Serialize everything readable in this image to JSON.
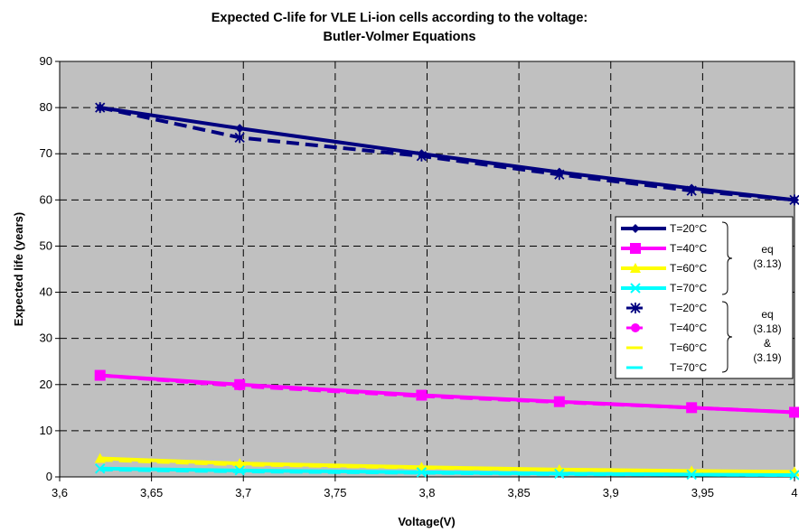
{
  "chart_data": {
    "type": "line",
    "title_lines": [
      "Expected C-life for VLE Li-ion cells according to the voltage:",
      "Butler-Volmer Equations"
    ],
    "xlabel": "Voltage(V)",
    "ylabel": "Expected life (years)",
    "xlim": [
      3.6,
      4.0
    ],
    "ylim": [
      0,
      90
    ],
    "x_ticks": [
      "3,6",
      "3,65",
      "3,7",
      "3,75",
      "3,8",
      "3,85",
      "3,9",
      "3,95",
      "4"
    ],
    "y_ticks": [
      "0",
      "10",
      "20",
      "30",
      "40",
      "50",
      "60",
      "70",
      "80",
      "90"
    ],
    "grid": "dashed vertical and horizontal",
    "legend_position": "right",
    "series": [
      {
        "name": "T=20°C",
        "group": "eq13",
        "color": "#00007f",
        "marker": "diamond",
        "dashed": false,
        "x": [
          3.622,
          3.698,
          3.797,
          3.872,
          3.944,
          4.0
        ],
        "y": [
          80,
          75.5,
          70,
          66,
          62.5,
          60
        ]
      },
      {
        "name": "T=40°C",
        "group": "eq13",
        "color": "#ff00ff",
        "marker": "square",
        "dashed": false,
        "x": [
          3.622,
          3.698,
          3.797,
          3.872,
          3.944,
          4.0
        ],
        "y": [
          22,
          20,
          17.7,
          16.3,
          15,
          14
        ]
      },
      {
        "name": "T=60°C",
        "group": "eq13",
        "color": "#ffff00",
        "marker": "triangle",
        "dashed": false,
        "x": [
          3.622,
          3.698,
          3.797,
          3.872,
          3.944,
          4.0
        ],
        "y": [
          4,
          2.9,
          2.1,
          1.6,
          1.3,
          1.1
        ]
      },
      {
        "name": "T=70°C",
        "group": "eq13",
        "color": "#00ffff",
        "marker": "x",
        "dashed": false,
        "x": [
          3.622,
          3.698,
          3.797,
          3.872,
          3.944,
          4.0
        ],
        "y": [
          1.8,
          1.4,
          1,
          0.7,
          0.5,
          0.4
        ]
      },
      {
        "name": "T=20°C",
        "group": "eq18",
        "color": "#00007f",
        "marker": "star",
        "dashed": true,
        "x": [
          3.622,
          3.698,
          3.797,
          3.872,
          3.944,
          4.0
        ],
        "y": [
          80,
          73.5,
          69.5,
          65.5,
          62,
          60
        ]
      },
      {
        "name": "T=40°C",
        "group": "eq18",
        "color": "#ff00ff",
        "marker": "circle",
        "dashed": true,
        "x": [
          3.622,
          3.698,
          3.797,
          3.872,
          3.944,
          4.0
        ],
        "y": [
          22,
          19.7,
          17.5,
          16.2,
          15,
          14
        ]
      },
      {
        "name": "T=60°C",
        "group": "eq18",
        "color": "#ffff00",
        "marker": "none",
        "dashed": true,
        "x": [
          3.622,
          3.698,
          3.797,
          3.872,
          3.944,
          4.0
        ],
        "y": [
          3.7,
          2.7,
          2,
          1.5,
          1.2,
          1
        ]
      },
      {
        "name": "T=70°C",
        "group": "eq18",
        "color": "#00ffff",
        "marker": "none",
        "dashed": true,
        "x": [
          3.622,
          3.698,
          3.797,
          3.872,
          3.944,
          4.0
        ],
        "y": [
          1.6,
          1.2,
          0.9,
          0.6,
          0.5,
          0.4
        ]
      }
    ],
    "legend_groups": [
      {
        "id": "eq13",
        "lines": [
          "eq",
          "(3.13)"
        ]
      },
      {
        "id": "eq18",
        "lines": [
          "eq",
          "(3.18)",
          "&",
          "(3.19)"
        ]
      }
    ],
    "colors": {
      "plot_background": "#c0c0c0",
      "grid": "#000000"
    }
  }
}
